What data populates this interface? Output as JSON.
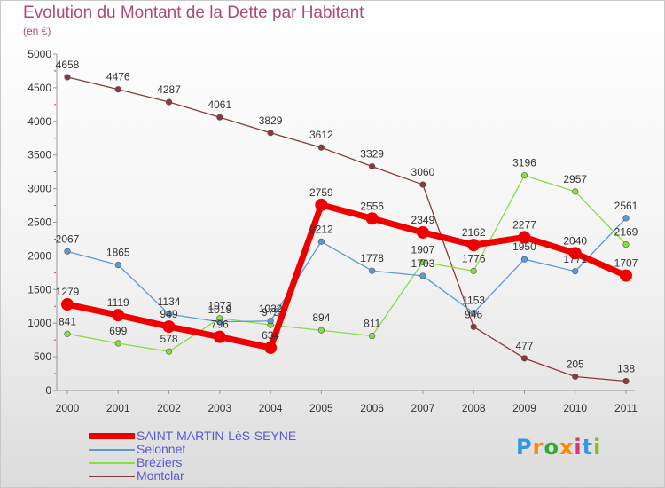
{
  "chart_data": {
    "type": "line",
    "title": "Evolution du Montant de la Dette par Habitant",
    "subtitle": "(en €)",
    "categories": [
      "2000",
      "2001",
      "2002",
      "2003",
      "2004",
      "2005",
      "2006",
      "2007",
      "2008",
      "2009",
      "2010",
      "2011"
    ],
    "ylim": [
      0,
      5000
    ],
    "yticks": [
      0,
      500,
      1000,
      1500,
      2000,
      2500,
      3000,
      3500,
      4000,
      4500,
      5000
    ],
    "grid": false,
    "legend_position": "bottom-left",
    "series": [
      {
        "name": "SAINT-MARTIN-LèS-SEYNE",
        "color": "#ee0000",
        "width": 7,
        "values": [
          1279,
          1119,
          949,
          796,
          634,
          2759,
          2556,
          2349,
          2162,
          2277,
          2040,
          1707
        ]
      },
      {
        "name": "Selonnet",
        "color": "#5b9ad6",
        "width": 1.3,
        "values": [
          2067,
          1865,
          1134,
          1019,
          1032,
          2212,
          1778,
          1703,
          1153,
          1950,
          1771,
          2561
        ]
      },
      {
        "name": "Bréziers",
        "color": "#88dd44",
        "width": 1.3,
        "values": [
          841,
          699,
          578,
          1073,
          975,
          894,
          811,
          1907,
          1776,
          3196,
          2957,
          2169
        ]
      },
      {
        "name": "Montclar",
        "color": "#8b3a3a",
        "width": 1.3,
        "values": [
          4658,
          4476,
          4287,
          4061,
          3829,
          3612,
          3329,
          3060,
          946,
          477,
          205,
          138
        ]
      }
    ]
  },
  "logo": {
    "text": "Proxiti",
    "colors": [
      "#3399dd",
      "#ff8800",
      "#33aa33",
      "#ff8800",
      "#dd3377",
      "#3399dd",
      "#88bb22"
    ]
  }
}
